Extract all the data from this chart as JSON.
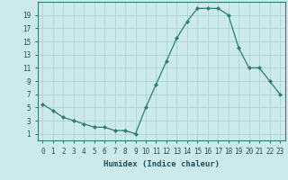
{
  "x": [
    0,
    1,
    2,
    3,
    4,
    5,
    6,
    7,
    8,
    9,
    10,
    11,
    12,
    13,
    14,
    15,
    16,
    17,
    18,
    19,
    20,
    21,
    22,
    23
  ],
  "y": [
    5.5,
    4.5,
    3.5,
    3,
    2.5,
    2,
    2,
    1.5,
    1.5,
    1,
    5,
    8.5,
    12,
    15.5,
    18,
    20,
    20,
    20,
    19,
    14,
    11,
    11,
    9,
    7
  ],
  "line_color": "#2e7d6e",
  "marker": "D",
  "marker_size": 2,
  "background_color": "#cceaea",
  "grid_color": "#aad4d4",
  "xlabel": "Humidex (Indice chaleur)",
  "xlim": [
    -0.5,
    23.5
  ],
  "ylim": [
    0,
    21
  ],
  "yticks": [
    1,
    3,
    5,
    7,
    9,
    11,
    13,
    15,
    17,
    19
  ],
  "xticks": [
    0,
    1,
    2,
    3,
    4,
    5,
    6,
    7,
    8,
    9,
    10,
    11,
    12,
    13,
    14,
    15,
    16,
    17,
    18,
    19,
    20,
    21,
    22,
    23
  ],
  "font_color": "#1e5060",
  "tick_fontsize": 5.5,
  "xlabel_fontsize": 6.5
}
